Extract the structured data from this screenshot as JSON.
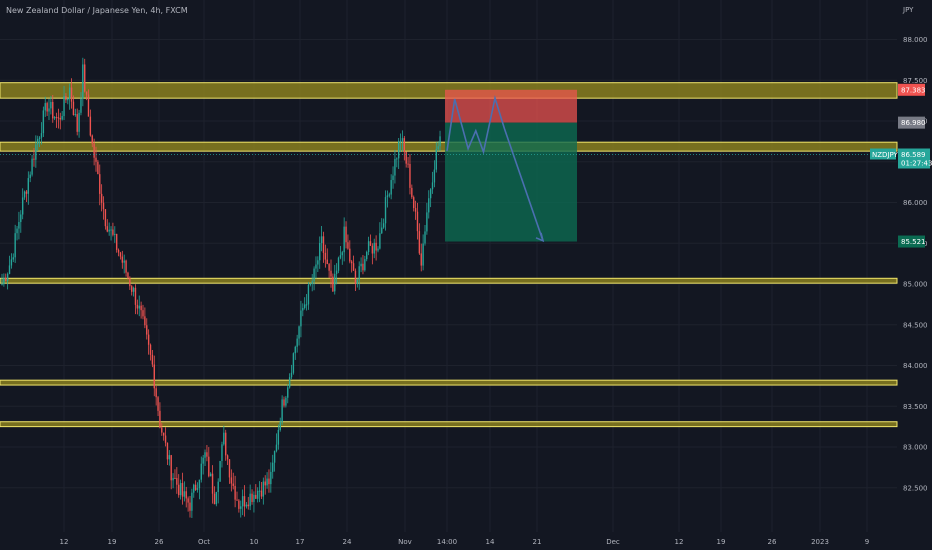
{
  "header": {
    "title": "New Zealand Dollar / Japanese Yen, 4h, FXCM",
    "currency": "JPY"
  },
  "colors": {
    "background": "#131722",
    "up": "#26a69a",
    "down": "#ef5350",
    "zone_fill": "#8a7f1e",
    "zone_border": "#f2e66b",
    "stop_zone": "#f05350",
    "target_zone": "#0b6b52",
    "arrow": "#4b6fb0",
    "grid": "#1e222d"
  },
  "chart_data": {
    "type": "candlestick",
    "symbol": "NZDJPY",
    "timeframe": "4h",
    "ylim": [
      82.2,
      88.3
    ],
    "y_ticks": [
      "82.500",
      "83.000",
      "83.500",
      "84.000",
      "84.500",
      "85.000",
      "85.500",
      "86.000",
      "86.500",
      "87.000",
      "87.500",
      "88.000"
    ],
    "x_tick_labels": [
      "12",
      "19",
      "26",
      "Oct",
      "10",
      "17",
      "24",
      "Nov",
      "14:00",
      "14",
      "21",
      "Dec",
      "12",
      "19",
      "26",
      "2023",
      "9"
    ],
    "price_labels": [
      {
        "name": "zone-top-price",
        "value": "87.383",
        "color": "#f05350"
      },
      {
        "name": "entry-price",
        "value": "86.980",
        "color": "#787b86"
      },
      {
        "name": "target-price",
        "value": "85.521",
        "color": "#0b6b52"
      }
    ],
    "last_price": {
      "symbol": "NZDJPY",
      "value": "86.589",
      "countdown": "01:27:43",
      "color": "#26a69a"
    },
    "zones": [
      {
        "low": 87.28,
        "high": 87.47
      },
      {
        "low": 86.63,
        "high": 86.74
      },
      {
        "low": 85.01,
        "high": 85.07
      },
      {
        "low": 83.76,
        "high": 83.82
      },
      {
        "low": 83.25,
        "high": 83.31
      }
    ],
    "position": {
      "entry": 86.98,
      "stop": 87.383,
      "target": 85.521
    },
    "projection_path": [
      {
        "t": 0.0,
        "p": 86.63
      },
      {
        "t": 0.08,
        "p": 87.27
      },
      {
        "t": 0.22,
        "p": 86.66
      },
      {
        "t": 0.3,
        "p": 86.88
      },
      {
        "t": 0.38,
        "p": 86.62
      },
      {
        "t": 0.5,
        "p": 87.28
      },
      {
        "t": 0.6,
        "p": 86.9
      },
      {
        "t": 1.0,
        "p": 85.53
      }
    ],
    "anchors": [
      {
        "i": 0,
        "p": 85.0
      },
      {
        "i": 5,
        "p": 85.3
      },
      {
        "i": 10,
        "p": 85.9
      },
      {
        "i": 18,
        "p": 86.7
      },
      {
        "i": 24,
        "p": 87.2
      },
      {
        "i": 30,
        "p": 87.0
      },
      {
        "i": 36,
        "p": 87.4
      },
      {
        "i": 40,
        "p": 86.9
      },
      {
        "i": 43,
        "p": 87.6
      },
      {
        "i": 48,
        "p": 86.7
      },
      {
        "i": 55,
        "p": 85.8
      },
      {
        "i": 62,
        "p": 85.4
      },
      {
        "i": 70,
        "p": 84.9
      },
      {
        "i": 74,
        "p": 84.6
      },
      {
        "i": 80,
        "p": 84.0
      },
      {
        "i": 84,
        "p": 83.3
      },
      {
        "i": 90,
        "p": 82.7
      },
      {
        "i": 96,
        "p": 82.4
      },
      {
        "i": 100,
        "p": 82.3
      },
      {
        "i": 108,
        "p": 82.9
      },
      {
        "i": 113,
        "p": 82.4
      },
      {
        "i": 118,
        "p": 83.1
      },
      {
        "i": 122,
        "p": 82.6
      },
      {
        "i": 126,
        "p": 82.3
      },
      {
        "i": 132,
        "p": 82.4
      },
      {
        "i": 138,
        "p": 82.5
      },
      {
        "i": 143,
        "p": 82.6
      },
      {
        "i": 148,
        "p": 83.4
      },
      {
        "i": 153,
        "p": 83.9
      },
      {
        "i": 160,
        "p": 84.7
      },
      {
        "i": 166,
        "p": 85.1
      },
      {
        "i": 170,
        "p": 85.5
      },
      {
        "i": 176,
        "p": 84.9
      },
      {
        "i": 182,
        "p": 85.6
      },
      {
        "i": 188,
        "p": 85.0
      },
      {
        "i": 194,
        "p": 85.4
      },
      {
        "i": 200,
        "p": 85.5
      },
      {
        "i": 206,
        "p": 86.2
      },
      {
        "i": 212,
        "p": 86.8
      },
      {
        "i": 216,
        "p": 86.4
      },
      {
        "i": 220,
        "p": 85.8
      },
      {
        "i": 223,
        "p": 85.3
      },
      {
        "i": 226,
        "p": 85.9
      },
      {
        "i": 230,
        "p": 86.5
      },
      {
        "i": 233,
        "p": 86.8
      }
    ]
  }
}
